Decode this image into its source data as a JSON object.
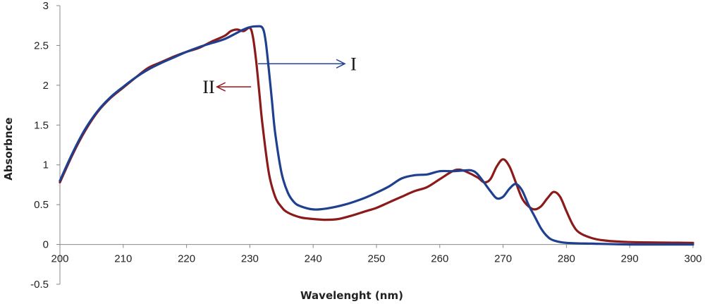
{
  "chart_data": {
    "type": "line",
    "title": "",
    "xlabel": "Wavelenght (nm)",
    "ylabel": "Absorbnce",
    "xlim": [
      200,
      300
    ],
    "ylim": [
      -0.5,
      3
    ],
    "x_ticks": [
      200,
      210,
      220,
      230,
      240,
      250,
      260,
      270,
      280,
      290,
      300
    ],
    "y_ticks": [
      -0.5,
      0,
      0.5,
      1,
      1.5,
      2,
      2.5,
      3
    ],
    "grid": false,
    "legend": "none",
    "series": [
      {
        "name": "I",
        "color": "#1f3f8f",
        "points": [
          [
            200,
            0.8
          ],
          [
            202,
            1.15
          ],
          [
            204,
            1.45
          ],
          [
            206,
            1.68
          ],
          [
            208,
            1.85
          ],
          [
            210,
            1.98
          ],
          [
            212,
            2.1
          ],
          [
            214,
            2.2
          ],
          [
            216,
            2.28
          ],
          [
            218,
            2.35
          ],
          [
            220,
            2.42
          ],
          [
            222,
            2.48
          ],
          [
            224,
            2.53
          ],
          [
            226,
            2.58
          ],
          [
            228,
            2.66
          ],
          [
            229,
            2.7
          ],
          [
            230,
            2.73
          ],
          [
            231,
            2.74
          ],
          [
            232,
            2.72
          ],
          [
            232.5,
            2.55
          ],
          [
            233,
            2.2
          ],
          [
            233.5,
            1.8
          ],
          [
            234,
            1.4
          ],
          [
            235,
            0.9
          ],
          [
            236,
            0.65
          ],
          [
            237,
            0.53
          ],
          [
            238,
            0.48
          ],
          [
            240,
            0.44
          ],
          [
            242,
            0.45
          ],
          [
            245,
            0.5
          ],
          [
            248,
            0.58
          ],
          [
            250,
            0.65
          ],
          [
            252,
            0.73
          ],
          [
            254,
            0.83
          ],
          [
            256,
            0.87
          ],
          [
            258,
            0.88
          ],
          [
            260,
            0.92
          ],
          [
            262,
            0.92
          ],
          [
            264,
            0.93
          ],
          [
            265,
            0.93
          ],
          [
            266,
            0.88
          ],
          [
            268,
            0.67
          ],
          [
            269,
            0.58
          ],
          [
            270,
            0.6
          ],
          [
            271,
            0.7
          ],
          [
            272,
            0.76
          ],
          [
            273,
            0.68
          ],
          [
            274,
            0.5
          ],
          [
            275,
            0.35
          ],
          [
            276,
            0.2
          ],
          [
            277,
            0.1
          ],
          [
            278,
            0.05
          ],
          [
            280,
            0.02
          ],
          [
            284,
            0.01
          ],
          [
            290,
            0.0
          ],
          [
            300,
            0.0
          ]
        ]
      },
      {
        "name": "II",
        "color": "#8b1a1a",
        "points": [
          [
            200,
            0.78
          ],
          [
            202,
            1.13
          ],
          [
            204,
            1.43
          ],
          [
            206,
            1.67
          ],
          [
            208,
            1.84
          ],
          [
            210,
            1.97
          ],
          [
            212,
            2.1
          ],
          [
            214,
            2.22
          ],
          [
            216,
            2.29
          ],
          [
            218,
            2.36
          ],
          [
            220,
            2.42
          ],
          [
            222,
            2.47
          ],
          [
            224,
            2.55
          ],
          [
            226,
            2.62
          ],
          [
            227,
            2.68
          ],
          [
            228,
            2.7
          ],
          [
            229,
            2.68
          ],
          [
            230,
            2.72
          ],
          [
            230.5,
            2.6
          ],
          [
            231,
            2.3
          ],
          [
            231.5,
            1.9
          ],
          [
            232,
            1.5
          ],
          [
            233,
            0.9
          ],
          [
            234,
            0.6
          ],
          [
            235,
            0.47
          ],
          [
            236,
            0.4
          ],
          [
            238,
            0.34
          ],
          [
            240,
            0.32
          ],
          [
            242,
            0.31
          ],
          [
            244,
            0.32
          ],
          [
            246,
            0.36
          ],
          [
            248,
            0.41
          ],
          [
            250,
            0.46
          ],
          [
            252,
            0.53
          ],
          [
            254,
            0.6
          ],
          [
            256,
            0.67
          ],
          [
            258,
            0.72
          ],
          [
            260,
            0.82
          ],
          [
            262,
            0.92
          ],
          [
            263,
            0.94
          ],
          [
            264,
            0.92
          ],
          [
            266,
            0.84
          ],
          [
            267,
            0.78
          ],
          [
            268,
            0.82
          ],
          [
            269,
            0.98
          ],
          [
            270,
            1.07
          ],
          [
            271,
            0.98
          ],
          [
            272,
            0.78
          ],
          [
            273,
            0.58
          ],
          [
            274,
            0.48
          ],
          [
            275,
            0.44
          ],
          [
            276,
            0.48
          ],
          [
            277,
            0.58
          ],
          [
            278,
            0.66
          ],
          [
            279,
            0.6
          ],
          [
            280,
            0.42
          ],
          [
            281,
            0.25
          ],
          [
            282,
            0.15
          ],
          [
            284,
            0.08
          ],
          [
            286,
            0.05
          ],
          [
            290,
            0.03
          ],
          [
            300,
            0.02
          ]
        ]
      }
    ],
    "annotations": [
      {
        "text": "I",
        "series": "I",
        "arrow": "right"
      },
      {
        "text": "II",
        "series": "II",
        "arrow": "left"
      }
    ]
  }
}
